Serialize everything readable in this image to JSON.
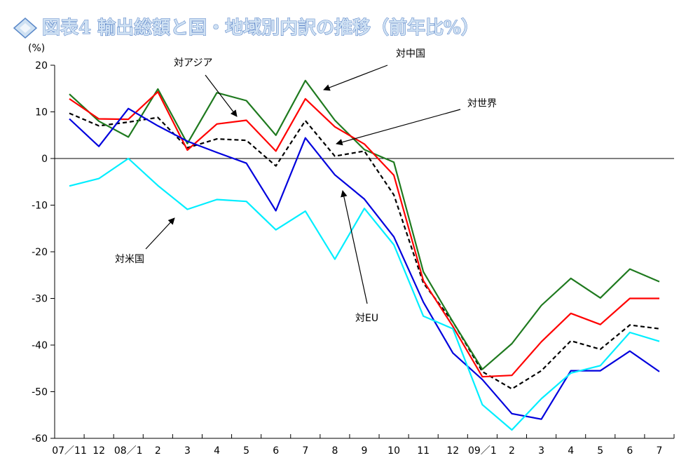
{
  "title": "図表4 輸出総額と国・地域別内訳の推移（前年比%）",
  "chart_data": {
    "type": "line",
    "title": "図表4 輸出総額と国・地域別内訳の推移（前年比%）",
    "ylabel": "(%)",
    "xlabel": "",
    "ylim": [
      -60,
      20
    ],
    "yticks": [
      20,
      10,
      0,
      -10,
      -20,
      -30,
      -40,
      -50,
      -60
    ],
    "grid": false,
    "legend": "annotations",
    "categories": [
      "07／11",
      "12",
      "08／1",
      "2",
      "3",
      "4",
      "5",
      "6",
      "7",
      "8",
      "9",
      "10",
      "11",
      "12",
      "09／1",
      "2",
      "3",
      "4",
      "5",
      "6",
      "7"
    ],
    "series": [
      {
        "name": "対世界",
        "color": "#000000",
        "dash": true,
        "values": [
          9.7,
          7.0,
          7.8,
          8.8,
          2.3,
          4.2,
          3.9,
          -1.6,
          8.1,
          0.5,
          1.6,
          -7.8,
          -26.7,
          -35.0,
          -45.7,
          -49.4,
          -45.5,
          -39.1,
          -40.9,
          -35.7,
          -36.5
        ]
      },
      {
        "name": "対中国",
        "color": "#1f7a1f",
        "dash": false,
        "values": [
          13.8,
          8.0,
          4.6,
          14.9,
          3.2,
          14.1,
          12.4,
          5.0,
          16.7,
          8.2,
          1.9,
          -0.8,
          -24.3,
          -35.0,
          -45.2,
          -39.7,
          -31.5,
          -25.7,
          -29.9,
          -23.7,
          -26.4
        ]
      },
      {
        "name": "対アジア",
        "color": "#ff0000",
        "dash": false,
        "values": [
          12.8,
          8.5,
          8.4,
          14.3,
          1.8,
          7.4,
          8.2,
          1.6,
          12.8,
          6.8,
          3.1,
          -3.6,
          -26.2,
          -36.0,
          -46.8,
          -46.5,
          -39.3,
          -33.2,
          -35.6,
          -30.0,
          -30.0
        ]
      },
      {
        "name": "対EU",
        "color": "#0000dd",
        "dash": false,
        "values": [
          8.5,
          2.6,
          10.7,
          7.0,
          3.7,
          1.3,
          -1.0,
          -11.2,
          4.4,
          -3.5,
          -8.7,
          -16.8,
          -30.8,
          -41.7,
          -47.4,
          -54.7,
          -55.9,
          -45.5,
          -45.5,
          -41.3,
          -45.7
        ]
      },
      {
        "name": "対米国",
        "color": "#00eeff",
        "dash": false,
        "values": [
          -5.9,
          -4.3,
          0.0,
          -5.8,
          -10.9,
          -8.8,
          -9.2,
          -15.3,
          -11.3,
          -21.6,
          -10.7,
          -18.5,
          -33.8,
          -36.5,
          -52.8,
          -58.2,
          -51.5,
          -46.0,
          -44.4,
          -37.3,
          -39.2
        ]
      }
    ],
    "annotations": [
      "対アジア",
      "対中国",
      "対世界",
      "対米国",
      "対EU"
    ]
  }
}
